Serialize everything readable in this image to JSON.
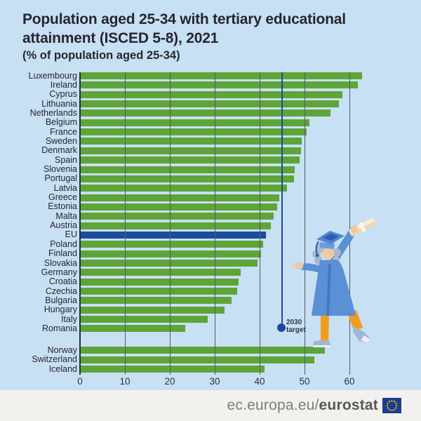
{
  "title": {
    "line1": "Population aged 25-34 with tertiary educational",
    "line2": "attainment (ISCED 5-8), 2021",
    "subtitle": "(% of population aged 25-34)"
  },
  "chart_data": {
    "type": "bar",
    "orientation": "horizontal",
    "title": "Population aged 25-34 with tertiary educational attainment (ISCED 5-8), 2021",
    "subtitle": "(% of population aged 25-34)",
    "xlabel": "% of population aged 25-34",
    "xlim": [
      0,
      65
    ],
    "x_ticks": [
      0,
      10,
      20,
      30,
      40,
      50,
      60
    ],
    "grid": "vertical",
    "legend": "none",
    "bar_color": "#5fa438",
    "highlight_category": "EU",
    "highlight_color": "#1c4b9c",
    "target": {
      "value": 45,
      "label": [
        "2030",
        "target"
      ],
      "color": "#1c4b9c"
    },
    "groups": [
      {
        "name": "eu-members-and-eu-aggregate",
        "rows": [
          {
            "label": "Luxembourg",
            "value": 62.6
          },
          {
            "label": "Ireland",
            "value": 61.7
          },
          {
            "label": "Cyprus",
            "value": 58.3
          },
          {
            "label": "Lithuania",
            "value": 57.5
          },
          {
            "label": "Netherlands",
            "value": 55.6
          },
          {
            "label": "Belgium",
            "value": 50.9
          },
          {
            "label": "France",
            "value": 50.3
          },
          {
            "label": "Sweden",
            "value": 49.2
          },
          {
            "label": "Denmark",
            "value": 49.0
          },
          {
            "label": "Spain",
            "value": 48.7
          },
          {
            "label": "Slovenia",
            "value": 47.6
          },
          {
            "label": "Portugal",
            "value": 47.5
          },
          {
            "label": "Latvia",
            "value": 45.9
          },
          {
            "label": "Greece",
            "value": 44.2
          },
          {
            "label": "Estonia",
            "value": 43.7
          },
          {
            "label": "Malta",
            "value": 42.9
          },
          {
            "label": "Austria",
            "value": 42.4
          },
          {
            "label": "EU",
            "value": 41.2
          },
          {
            "label": "Poland",
            "value": 40.6
          },
          {
            "label": "Finland",
            "value": 40.1
          },
          {
            "label": "Slovakia",
            "value": 39.4
          },
          {
            "label": "Germany",
            "value": 35.7
          },
          {
            "label": "Croatia",
            "value": 35.2
          },
          {
            "label": "Czechia",
            "value": 34.9
          },
          {
            "label": "Bulgaria",
            "value": 33.6
          },
          {
            "label": "Hungary",
            "value": 32.1
          },
          {
            "label": "Italy",
            "value": 28.3
          },
          {
            "label": "Romania",
            "value": 23.3
          }
        ]
      },
      {
        "name": "efta-countries",
        "rows": [
          {
            "label": "Norway",
            "value": 54.4
          },
          {
            "label": "Switzerland",
            "value": 52.0
          },
          {
            "label": "Iceland",
            "value": 41.0
          }
        ]
      }
    ]
  },
  "footer": {
    "url_prefix": "ec.europa.eu/",
    "url_bold": "eurostat"
  }
}
